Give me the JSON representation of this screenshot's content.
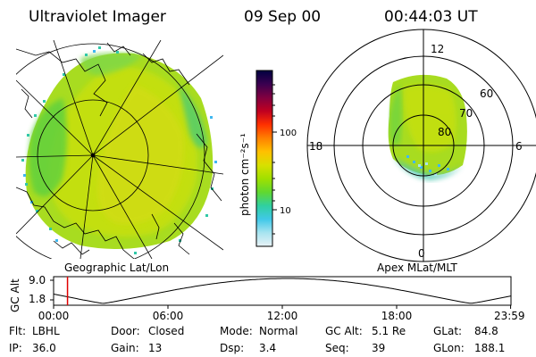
{
  "header": {
    "instrument": "Ultraviolet Imager",
    "date": "09 Sep 00",
    "time": "00:44:03 UT"
  },
  "left_panel": {
    "caption": "Geographic Lat/Lon"
  },
  "right_panel": {
    "caption": "Apex MLat/MLT",
    "mlt_labels": {
      "top": "12",
      "left": "18",
      "right": "6",
      "bottom": "0"
    },
    "mlat_labels": [
      "60",
      "70",
      "80"
    ]
  },
  "colorbar": {
    "unit_label": "photon cm⁻²s⁻¹",
    "ticks": [
      "100",
      "10"
    ],
    "colors": [
      "#000040",
      "#3a0050",
      "#800040",
      "#c00020",
      "#ff3000",
      "#ff8000",
      "#ffc000",
      "#d8e000",
      "#a0e000",
      "#60d830",
      "#30d0a0",
      "#40c8e8",
      "#a8e4f0",
      "#e8f2f6"
    ]
  },
  "timeline": {
    "axis_label": "GC Alt",
    "y_ticks": [
      "9.0",
      "1.8"
    ],
    "x_ticks": [
      "00:00",
      "06:00",
      "12:00",
      "18:00",
      "23:59"
    ],
    "current_time_hours": 0.73,
    "marker_color": "#e00000"
  },
  "status": {
    "flt_label": "Flt:",
    "flt_value": "LBHL",
    "ip_label": "IP:",
    "ip_value": "36.0",
    "door_label": "Door:",
    "door_value": "Closed",
    "gain_label": "Gain:",
    "gain_value": "13",
    "mode_label": "Mode:",
    "mode_value": "Normal",
    "dsp_label": "Dsp:",
    "dsp_value": "3.4",
    "gcalt_label": "GC Alt:",
    "gcalt_value": "5.1 Re",
    "seq_label": "Seq:",
    "seq_value": "39",
    "glat_label": "GLat:",
    "glat_value": "84.8",
    "glon_label": "GLon:",
    "glon_value": "188.1"
  }
}
